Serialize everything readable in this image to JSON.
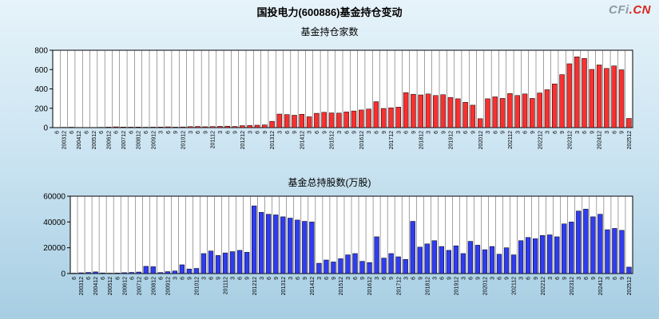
{
  "header": {
    "title": "国投电力(600886)基金持仓变动"
  },
  "logo": {
    "cfi": "CFi",
    "cn": ".CN"
  },
  "colors": {
    "chart1_bar": "#f83030",
    "chart2_bar": "#2f3cf0",
    "bar_outline": "#000000",
    "plot_background": "#ffffff",
    "gridline": "#444444",
    "background_top": "#e6f3fa",
    "background_bottom": "#a7cee3"
  },
  "chart_data": [
    {
      "type": "bar",
      "title": "基金持仓家数",
      "ylabel": "",
      "xlabel": "",
      "ylim": [
        0,
        800
      ],
      "yticks": [
        0,
        200,
        400,
        600,
        800
      ],
      "grid": "vertical",
      "legend": "none",
      "color": "#f83030",
      "categories": [
        "20036",
        "200312",
        "20046",
        "200412",
        "20056",
        "200512",
        "20066",
        "200612",
        "20076",
        "200712",
        "20086",
        "200812",
        "20096",
        "200912",
        "20103",
        "20106",
        "20109",
        "201012",
        "20113",
        "20116",
        "20119",
        "201112",
        "20123",
        "20126",
        "20129",
        "201212",
        "20133",
        "20136",
        "20139",
        "201312",
        "20143",
        "20146",
        "20149",
        "201412",
        "20153",
        "20156",
        "20159",
        "201512",
        "20163",
        "20166",
        "20169",
        "201612",
        "20173",
        "20176",
        "20179",
        "201712",
        "20183",
        "20186",
        "20189",
        "201812",
        "20193",
        "20196",
        "20199",
        "201912",
        "20203",
        "20206",
        "20209",
        "202012",
        "20213",
        "20216",
        "20219",
        "202112",
        "20223",
        "20226",
        "20229",
        "202212",
        "20233",
        "20236",
        "20239",
        "202312",
        "20243",
        "20246",
        "20249",
        "202412",
        "20253",
        "20256",
        "20259",
        "202512"
      ],
      "values": [
        2,
        3,
        4,
        2,
        1,
        2,
        3,
        5,
        8,
        6,
        5,
        6,
        4,
        5,
        6,
        8,
        5,
        7,
        10,
        12,
        9,
        11,
        13,
        15,
        12,
        20,
        22,
        25,
        28,
        65,
        140,
        135,
        128,
        138,
        112,
        148,
        158,
        152,
        150,
        162,
        172,
        182,
        192,
        268,
        198,
        205,
        212,
        362,
        345,
        338,
        348,
        332,
        340,
        312,
        298,
        262,
        232,
        92,
        298,
        318,
        302,
        352,
        332,
        348,
        302,
        358,
        392,
        452,
        548,
        660,
        732,
        715,
        602,
        648,
        612,
        638,
        598,
        95
      ]
    },
    {
      "type": "bar",
      "title": "基金总持股数(万股)",
      "ylabel": "",
      "xlabel": "",
      "ylim": [
        0,
        60000
      ],
      "yticks": [
        0,
        20000,
        40000,
        60000
      ],
      "grid": "vertical",
      "legend": "none",
      "color": "#2f3cf0",
      "categories": [
        "20036",
        "200312",
        "20046",
        "200412",
        "20056",
        "200512",
        "20066",
        "200612",
        "20076",
        "200712",
        "20086",
        "200812",
        "20096",
        "200912",
        "20103",
        "20106",
        "20109",
        "201012",
        "20113",
        "20116",
        "20119",
        "201112",
        "20123",
        "20126",
        "20129",
        "201212",
        "20133",
        "20136",
        "20139",
        "201312",
        "20143",
        "20146",
        "20149",
        "201412",
        "20153",
        "20156",
        "20159",
        "201512",
        "20163",
        "20166",
        "20169",
        "201612",
        "20173",
        "20176",
        "20179",
        "201712",
        "20183",
        "20186",
        "20189",
        "201812",
        "20193",
        "20196",
        "20199",
        "201912",
        "20203",
        "20206",
        "20209",
        "202012",
        "20213",
        "20216",
        "20219",
        "202112",
        "20223",
        "20226",
        "20229",
        "202212",
        "20233",
        "20236",
        "20239",
        "202312",
        "20243",
        "20246",
        "20249",
        "202412",
        "20253",
        "20256",
        "20259",
        "202512"
      ],
      "values": [
        300,
        600,
        900,
        1300,
        500,
        300,
        400,
        700,
        900,
        1200,
        5600,
        5300,
        800,
        1500,
        2000,
        6800,
        3500,
        4000,
        15500,
        17500,
        14000,
        16000,
        17000,
        18000,
        16500,
        52500,
        47500,
        46000,
        45500,
        44000,
        43000,
        41500,
        40500,
        40000,
        8000,
        10500,
        9000,
        11500,
        14500,
        15500,
        9500,
        8500,
        28500,
        12000,
        15500,
        13000,
        11000,
        40500,
        20500,
        23000,
        25500,
        21000,
        18000,
        21500,
        15500,
        25000,
        22000,
        18500,
        21000,
        15000,
        20000,
        14500,
        25500,
        28000,
        27000,
        29500,
        30000,
        28500,
        38500,
        40000,
        48500,
        50000,
        44000,
        46000,
        34000,
        35000,
        33500,
        5000
      ]
    }
  ]
}
